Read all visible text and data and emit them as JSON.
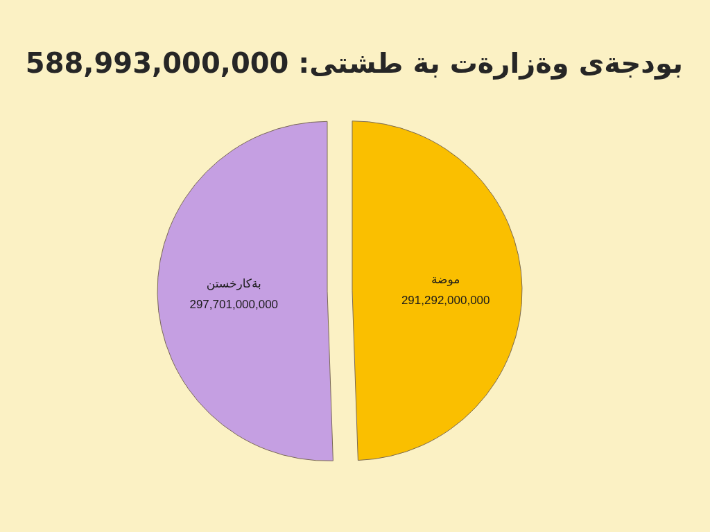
{
  "chart_data": {
    "type": "pie",
    "title": "بودجةى وةزارةت بة طشتى: 588,993,000,000",
    "categories": [
      "موضة",
      "بةكارخستن"
    ],
    "values": [
      291292000000,
      297701000000
    ],
    "value_labels": [
      "291,292,000,000",
      "297,701,000,000"
    ],
    "colors": [
      "#fabf00",
      "#c59fe2"
    ]
  }
}
